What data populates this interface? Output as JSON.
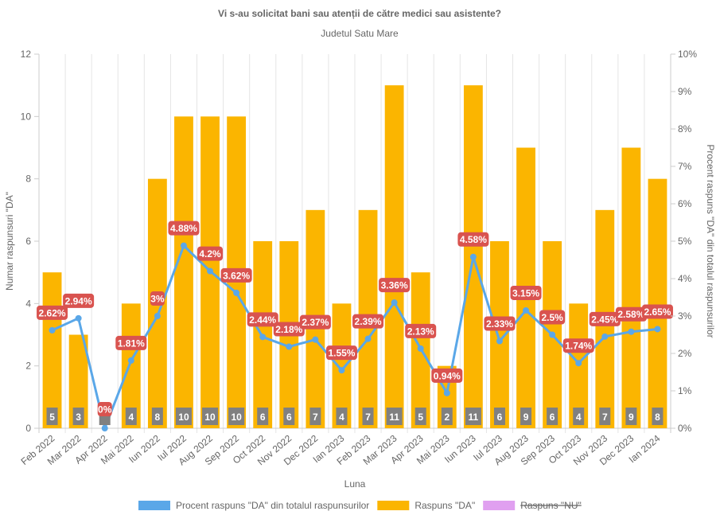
{
  "chart_data": {
    "type": "bar",
    "title": "Vi s-au solicitat bani sau atenții de către medici sau asistente?",
    "subtitle": "Judetul Satu Mare",
    "xlabel": "Luna",
    "ylabel": "Numar raspunsuri \"DA\"",
    "y2label": "Procent raspuns \"DA\" din totalul raspunsurilor",
    "ylim": [
      0,
      12
    ],
    "y2lim": [
      0,
      10
    ],
    "yticks": [
      "0",
      "2",
      "4",
      "6",
      "8",
      "10",
      "12"
    ],
    "y2ticks": [
      "0%",
      "1%",
      "2%",
      "3%",
      "4%",
      "5%",
      "6%",
      "7%",
      "8%",
      "9%",
      "10%"
    ],
    "grid": true,
    "legend_position": "bottom",
    "categories": [
      "Feb 2022",
      "Mar 2022",
      "Apr 2022",
      "Mai 2022",
      "Iun 2022",
      "Iul 2022",
      "Aug 2022",
      "Sep 2022",
      "Oct 2022",
      "Nov 2022",
      "Dec 2022",
      "Ian 2023",
      "Feb 2023",
      "Mar 2023",
      "Apr 2023",
      "Mai 2023",
      "Iun 2023",
      "Iul 2023",
      "Aug 2023",
      "Sep 2023",
      "Oct 2023",
      "Nov 2023",
      "Dec 2023",
      "Ian 2024"
    ],
    "series": [
      {
        "name": "Procent raspuns \"DA\" din totalul raspunsurilor",
        "type": "line",
        "axis": "right",
        "color": "#5aa7e8",
        "values": [
          2.62,
          2.94,
          0,
          1.81,
          3,
          4.88,
          4.2,
          3.62,
          2.44,
          2.18,
          2.37,
          1.55,
          2.39,
          3.36,
          2.13,
          0.94,
          4.58,
          2.33,
          3.15,
          2.5,
          1.74,
          2.45,
          2.58,
          2.65
        ],
        "labels": [
          "2.62%",
          "2.94%",
          "0%",
          "1.81%",
          "3%",
          "4.88%",
          "4.2%",
          "3.62%",
          "2.44%",
          "2.18%",
          "2.37%",
          "1.55%",
          "2.39%",
          "3.36%",
          "2.13%",
          "0.94%",
          "4.58%",
          "2.33%",
          "3.15%",
          "2.5%",
          "1.74%",
          "2.45%",
          "2.58%",
          "2.65%"
        ],
        "label_color": "#d9534f"
      },
      {
        "name": "Raspuns \"DA\"",
        "type": "bar",
        "axis": "left",
        "color": "#fbb500",
        "values": [
          5,
          3,
          0,
          4,
          8,
          10,
          10,
          10,
          6,
          6,
          7,
          4,
          7,
          11,
          5,
          2,
          11,
          6,
          9,
          6,
          4,
          7,
          9,
          8
        ],
        "label_color": "#808080"
      },
      {
        "name": "Raspuns \"NU\"",
        "type": "bar",
        "axis": "left",
        "color": "#e0a0f0",
        "hidden": true,
        "values": []
      }
    ]
  }
}
